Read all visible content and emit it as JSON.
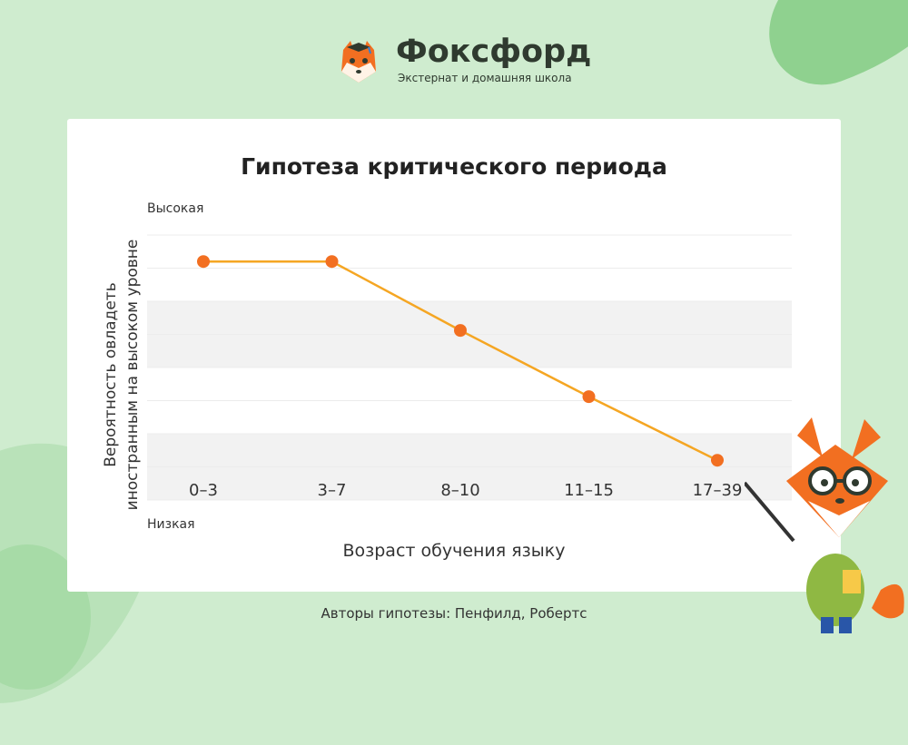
{
  "brand": {
    "name": "Фоксфорд",
    "tagline": "Экстернат и домашняя школа"
  },
  "chart_data": {
    "type": "line",
    "title": "Гипотеза критического периода",
    "categories": [
      "0–3",
      "3–7",
      "8–10",
      "11–15",
      "17–39"
    ],
    "values": [
      0.9,
      0.9,
      0.64,
      0.39,
      0.15
    ],
    "ylim": [
      0,
      1
    ],
    "y_top_label": "Высокая",
    "y_bottom_label": "Низкая",
    "ylabel_line1": "Вероятность овладеть",
    "ylabel_line2": "иностранным на высоком уровне",
    "xlabel": "Возраст обучения языку",
    "grid": true,
    "line_color": "#f5a623",
    "marker_color": "#f26f21"
  },
  "footer": "Авторы гипотезы: Пенфилд, Робертс"
}
